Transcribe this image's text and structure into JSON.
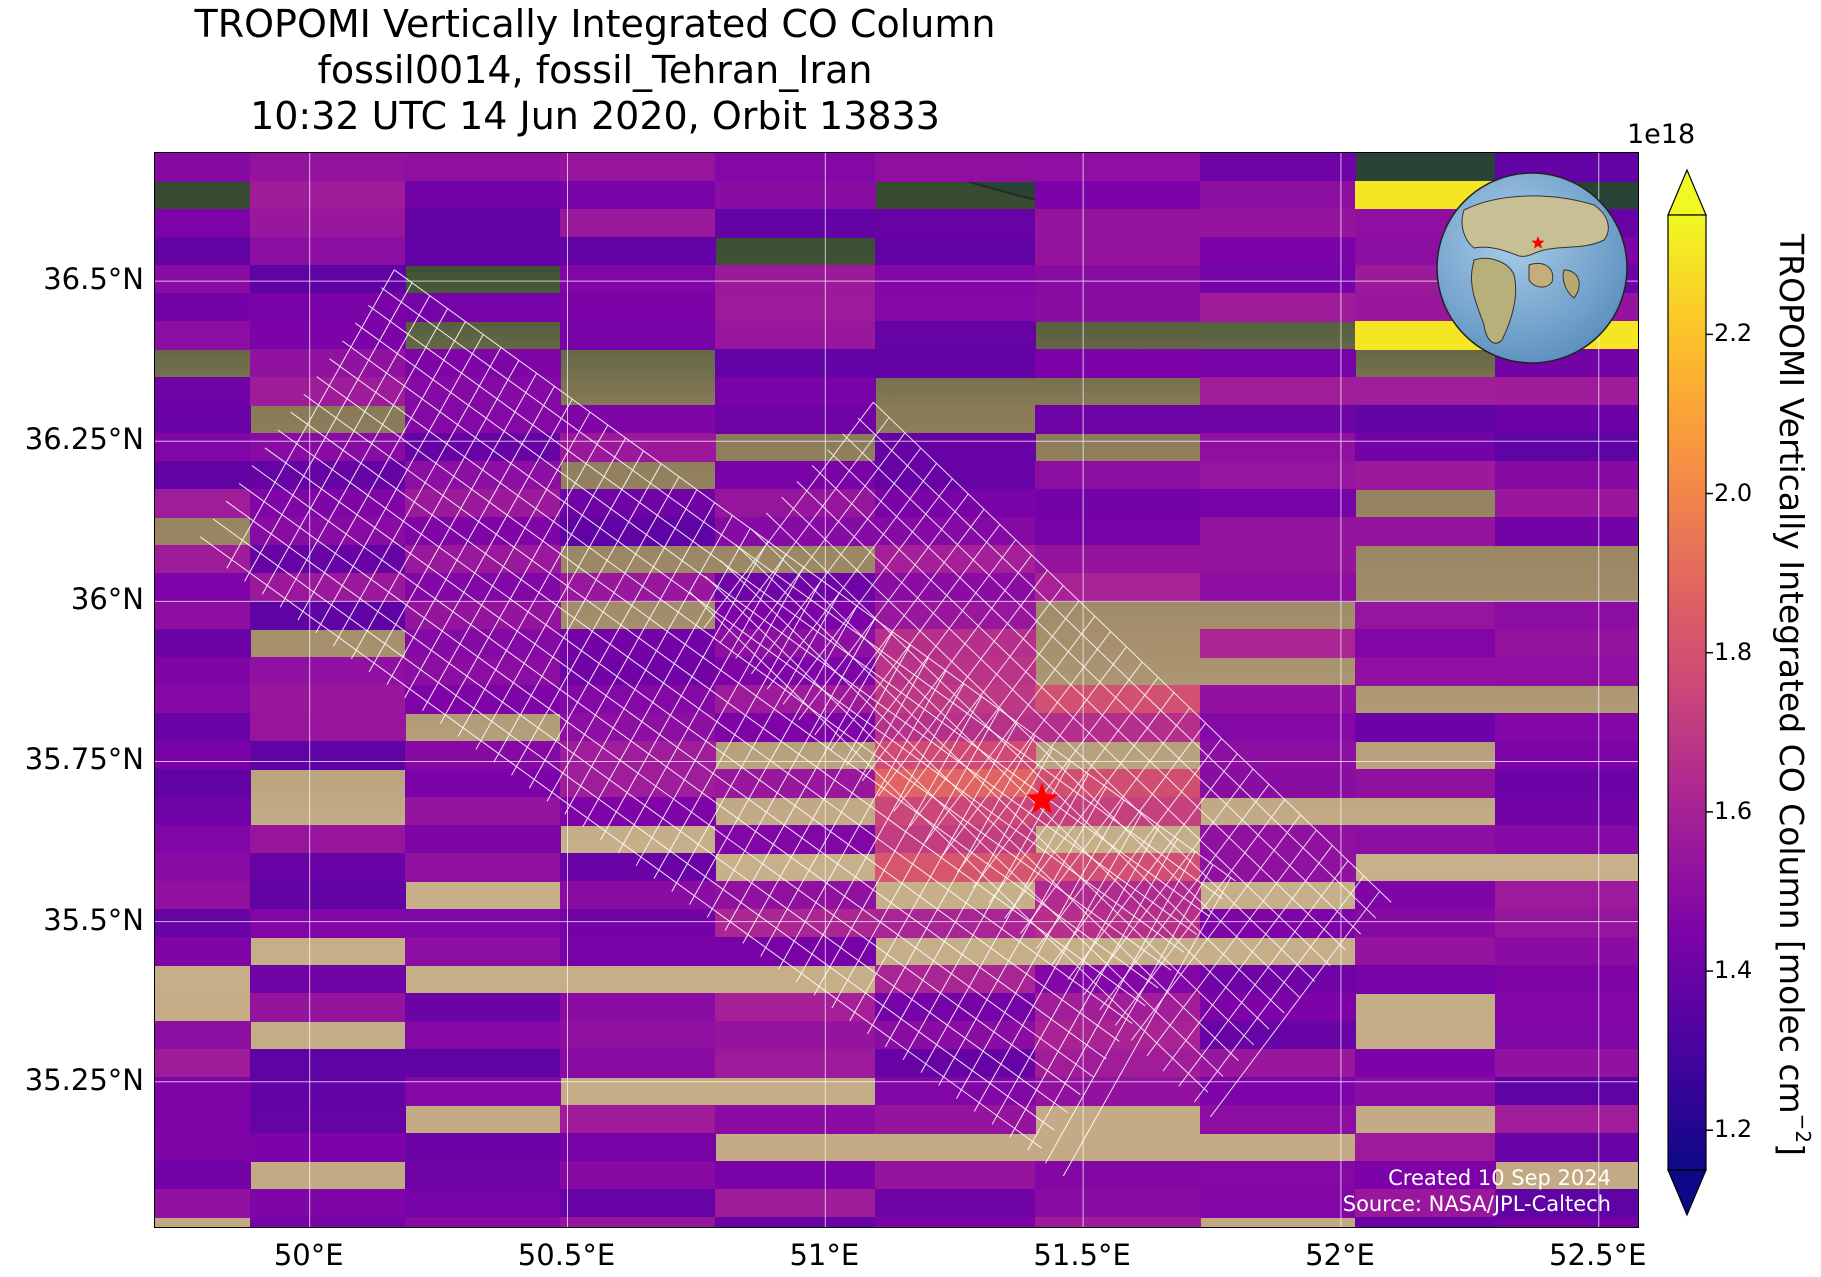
{
  "title": {
    "line1": "TROPOMI Vertically Integrated CO Column",
    "line2": "fossil0014, fossil_Tehran_Iran",
    "line3": "10:32 UTC 14 Jun 2020, Orbit 13833"
  },
  "map": {
    "extent": {
      "lon": [
        49.7,
        52.58
      ],
      "lat": [
        35.02,
        36.7
      ]
    },
    "lat_ticks": [
      {
        "value": 36.5,
        "label": "36.5°N"
      },
      {
        "value": 36.25,
        "label": "36.25°N"
      },
      {
        "value": 36.0,
        "label": "36°N"
      },
      {
        "value": 35.75,
        "label": "35.75°N"
      },
      {
        "value": 35.5,
        "label": "35.5°N"
      },
      {
        "value": 35.25,
        "label": "35.25°N"
      }
    ],
    "lon_ticks": [
      {
        "value": 50.0,
        "label": "50°E"
      },
      {
        "value": 50.5,
        "label": "50.5°E"
      },
      {
        "value": 51.0,
        "label": "51°E"
      },
      {
        "value": 51.5,
        "label": "51.5°E"
      },
      {
        "value": 52.0,
        "label": "52°E"
      },
      {
        "value": 52.5,
        "label": "52.5°E"
      }
    ],
    "target": {
      "lon": 51.42,
      "lat": 35.69,
      "marker": "red-star",
      "color": "#ff0000"
    },
    "background": "satellite-imagery",
    "overlay": "white-grid-of-target-mode-pixels",
    "credit": {
      "created": "Created 10 Sep 2024",
      "source": "Source: NASA/JPL-Caltech"
    }
  },
  "colorbar": {
    "label": "TROPOMI Vertically Integrated CO Column [molec cm",
    "label_sup": "−2",
    "label_end": "]",
    "exponent": "1e18",
    "colormap": "plasma",
    "vmin": 1.15,
    "vmax": 2.35,
    "extend": "both",
    "ticks": [
      {
        "value": 1.2,
        "label": "1.2"
      },
      {
        "value": 1.4,
        "label": "1.4"
      },
      {
        "value": 1.6,
        "label": "1.6"
      },
      {
        "value": 1.8,
        "label": "1.8"
      },
      {
        "value": 2.0,
        "label": "2.0"
      },
      {
        "value": 2.2,
        "label": "2.2"
      }
    ]
  },
  "globe_inset": {
    "center_lon": 51.42,
    "center_lat": 35.69,
    "marker": "red-star"
  }
}
